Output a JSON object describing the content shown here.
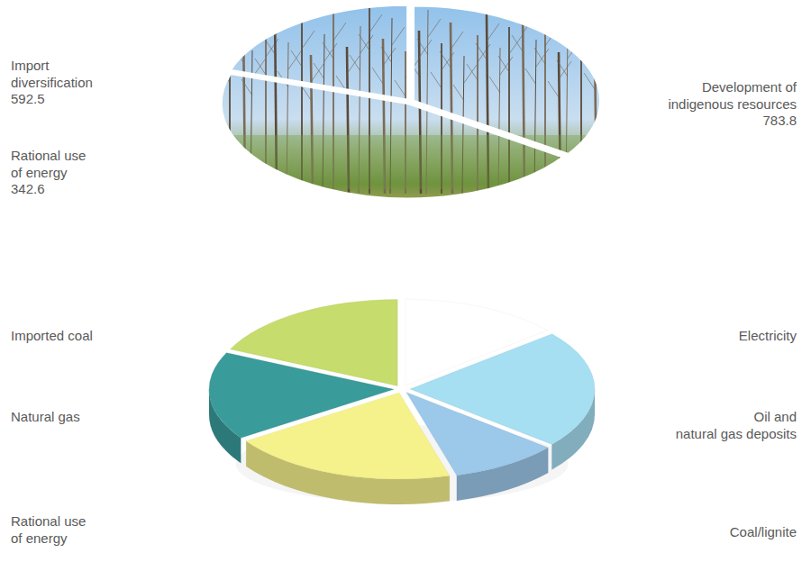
{
  "chart_data": [
    {
      "type": "pie",
      "categories": [
        "Import diversification",
        "Development of indigenous resources",
        "Rational use of energy"
      ],
      "values": [
        592.5,
        783.8,
        342.6
      ],
      "data_labels": true
    },
    {
      "type": "pie",
      "categories": [
        "Electricity",
        "Oil and natural gas deposits",
        "Coal/lignite",
        "Rational use of energy",
        "Natural gas",
        "Imported coal"
      ],
      "values": [
        240,
        380,
        163.8,
        342.6,
        282.5,
        310
      ],
      "colors": [
        "#ffffff",
        "#a6def2",
        "#9cc8ea",
        "#f5f28c",
        "#3a9b9b",
        "#c6dc6c"
      ],
      "data_labels": false
    }
  ]
}
